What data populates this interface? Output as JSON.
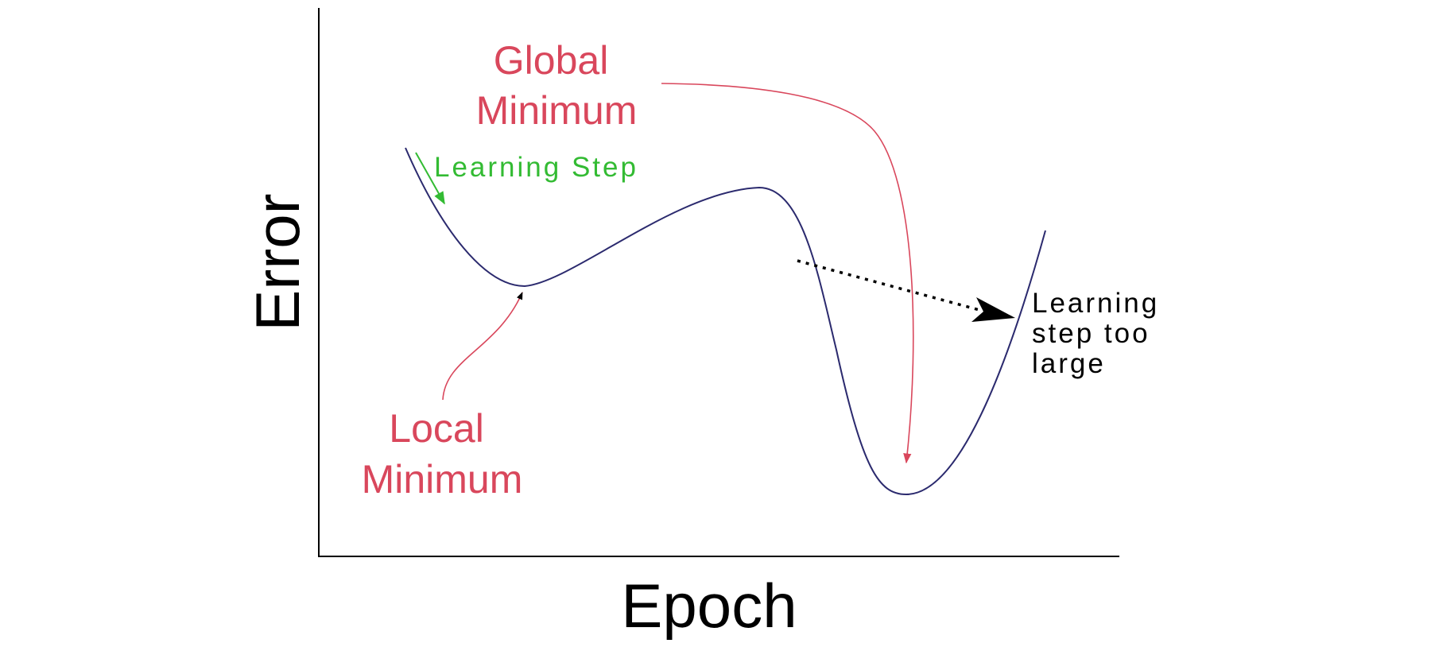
{
  "axes": {
    "x_label": "Epoch",
    "y_label": "Error"
  },
  "annotations": {
    "global_minimum": [
      "Global",
      "Minimum"
    ],
    "local_minimum": [
      "Local",
      "Minimum"
    ],
    "learning_step": "Learning Step",
    "learning_step_too_large": [
      "Learning",
      "step too",
      "large"
    ]
  },
  "colors": {
    "axis": "#000000",
    "curve": "#2b2a6e",
    "minimum_label": "#d9475c",
    "learning_step": "#33bb33",
    "overshoot_arrow": "#000000"
  }
}
